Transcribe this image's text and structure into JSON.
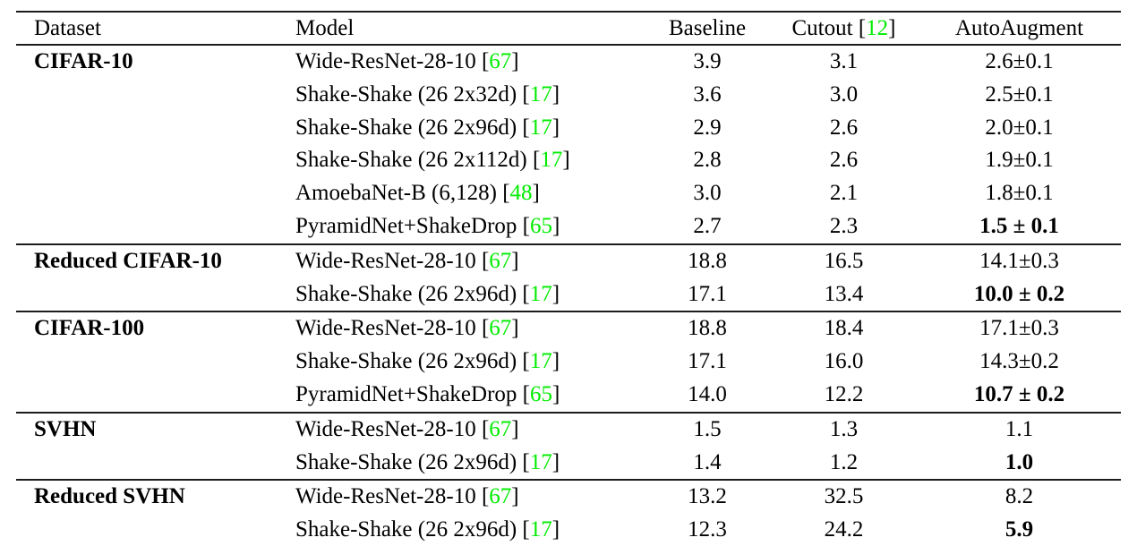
{
  "page": {
    "background": "#ffffff",
    "text_color": "#000000"
  },
  "table": {
    "rule_color": "#1c1c1c",
    "citation_color": "#00ec00",
    "citation": {
      "open": "[",
      "close": "]"
    },
    "header": {
      "dataset": "Dataset",
      "model": "Model",
      "baseline": "Baseline",
      "cutout": "Cutout",
      "cutout_cite": "12",
      "autoaugment": "AutoAugment"
    },
    "sections": [
      {
        "dataset": "CIFAR-10",
        "rows": [
          {
            "model": "Wide-ResNet-28-10",
            "cite": "67",
            "baseline": "3.9",
            "cutout": "3.1",
            "autoaugment": "2.6±0.1",
            "bold": false
          },
          {
            "model": "Shake-Shake (26 2x32d)",
            "cite": "17",
            "baseline": "3.6",
            "cutout": "3.0",
            "autoaugment": "2.5±0.1",
            "bold": false
          },
          {
            "model": "Shake-Shake (26 2x96d)",
            "cite": "17",
            "baseline": "2.9",
            "cutout": "2.6",
            "autoaugment": "2.0±0.1",
            "bold": false
          },
          {
            "model": "Shake-Shake (26 2x112d)",
            "cite": "17",
            "baseline": "2.8",
            "cutout": "2.6",
            "autoaugment": "1.9±0.1",
            "bold": false
          },
          {
            "model": "AmoebaNet-B (6,128)",
            "cite": "48",
            "baseline": "3.0",
            "cutout": "2.1",
            "autoaugment": "1.8±0.1",
            "bold": false
          },
          {
            "model": "PyramidNet+ShakeDrop",
            "cite": "65",
            "baseline": "2.7",
            "cutout": "2.3",
            "autoaugment": "1.5 ± 0.1",
            "bold": true
          }
        ]
      },
      {
        "dataset": "Reduced CIFAR-10",
        "rows": [
          {
            "model": "Wide-ResNet-28-10",
            "cite": "67",
            "baseline": "18.8",
            "cutout": "16.5",
            "autoaugment": "14.1±0.3",
            "bold": false
          },
          {
            "model": "Shake-Shake (26 2x96d)",
            "cite": "17",
            "baseline": "17.1",
            "cutout": "13.4",
            "autoaugment": "10.0 ± 0.2",
            "bold": true
          }
        ]
      },
      {
        "dataset": "CIFAR-100",
        "rows": [
          {
            "model": "Wide-ResNet-28-10",
            "cite": "67",
            "baseline": "18.8",
            "cutout": "18.4",
            "autoaugment": "17.1±0.3",
            "bold": false
          },
          {
            "model": "Shake-Shake (26 2x96d)",
            "cite": "17",
            "baseline": "17.1",
            "cutout": "16.0",
            "autoaugment": "14.3±0.2",
            "bold": false
          },
          {
            "model": "PyramidNet+ShakeDrop",
            "cite": "65",
            "baseline": "14.0",
            "cutout": "12.2",
            "autoaugment": "10.7 ± 0.2",
            "bold": true
          }
        ]
      },
      {
        "dataset": "SVHN",
        "rows": [
          {
            "model": "Wide-ResNet-28-10",
            "cite": "67",
            "baseline": "1.5",
            "cutout": "1.3",
            "autoaugment": "1.1",
            "bold": false
          },
          {
            "model": "Shake-Shake (26 2x96d)",
            "cite": "17",
            "baseline": "1.4",
            "cutout": "1.2",
            "autoaugment": "1.0",
            "bold": true
          }
        ]
      },
      {
        "dataset": "Reduced SVHN",
        "rows": [
          {
            "model": "Wide-ResNet-28-10",
            "cite": "67",
            "baseline": "13.2",
            "cutout": "32.5",
            "autoaugment": "8.2",
            "bold": false
          },
          {
            "model": "Shake-Shake (26 2x96d)",
            "cite": "17",
            "baseline": "12.3",
            "cutout": "24.2",
            "autoaugment": "5.9",
            "bold": true
          }
        ]
      }
    ]
  }
}
